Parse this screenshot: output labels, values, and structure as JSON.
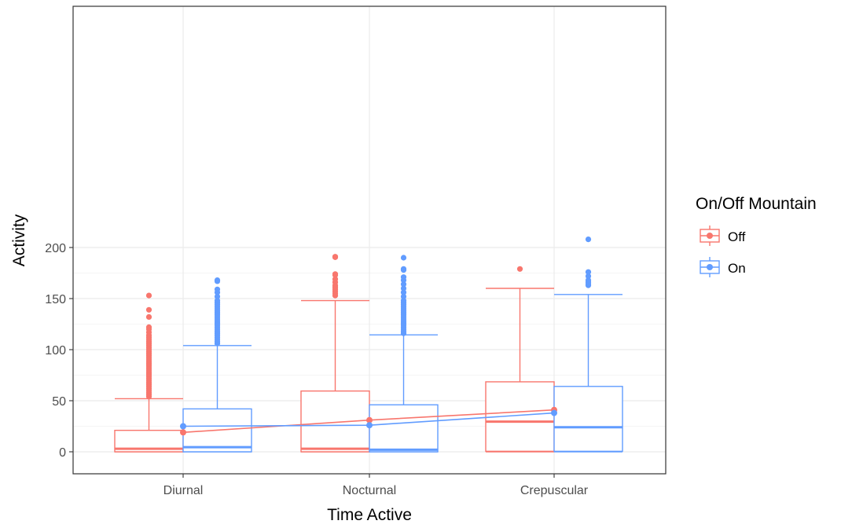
{
  "chart_data": {
    "type": "box",
    "title": "",
    "xlabel": "Time Active",
    "ylabel": "Activity",
    "categories": [
      "Diurnal",
      "Nocturnal",
      "Crepuscular"
    ],
    "ylim": [
      -10,
      218
    ],
    "yticks": [
      0,
      50,
      100,
      150,
      200
    ],
    "grid": true,
    "legend": {
      "title": "On/Off Mountain",
      "position": "right"
    },
    "series": [
      {
        "name": "Off",
        "color": "#f8766d",
        "boxes": [
          {
            "category": "Diurnal",
            "lower_whisker": 0,
            "q1": 0,
            "median": 3,
            "q3": 21,
            "upper_whisker": 52,
            "outliers": [
              54,
              56,
              58,
              60,
              62,
              64,
              66,
              68,
              70,
              72,
              74,
              76,
              78,
              80,
              82,
              84,
              86,
              88,
              90,
              92,
              94,
              96,
              98,
              100,
              102,
              104,
              106,
              108,
              110,
              112,
              114,
              117,
              120,
              122,
              132,
              139,
              153
            ]
          },
          {
            "category": "Nocturnal",
            "lower_whisker": 0,
            "q1": 0,
            "median": 3,
            "q3": 59.5,
            "upper_whisker": 148,
            "outliers": [
              153,
              155,
              157,
              159,
              161,
              163,
              166,
              169,
              173,
              174,
              190.5,
              191
            ]
          },
          {
            "category": "Crepuscular",
            "lower_whisker": 0,
            "q1": 0.5,
            "median": 29.5,
            "q3": 68.5,
            "upper_whisker": 160,
            "outliers": [
              179
            ]
          }
        ],
        "means": [
          19,
          31,
          41
        ]
      },
      {
        "name": "On",
        "color": "#619cff",
        "boxes": [
          {
            "category": "Diurnal",
            "lower_whisker": 0,
            "q1": 0,
            "median": 4.5,
            "q3": 42,
            "upper_whisker": 104,
            "outliers": [
              106,
              108,
              110,
              112,
              114,
              116,
              118,
              120,
              122,
              124,
              126,
              128,
              130,
              132,
              134,
              136,
              138,
              140,
              142,
              144,
              146,
              148,
              152,
              156,
              159,
              167,
              168
            ]
          },
          {
            "category": "Nocturnal",
            "lower_whisker": 0,
            "q1": 0,
            "median": 2,
            "q3": 46,
            "upper_whisker": 114.5,
            "outliers": [
              116,
              118,
              120,
              122,
              124,
              126,
              128,
              130,
              132,
              134,
              136,
              138,
              140,
              142,
              144,
              146,
              148,
              152,
              156,
              160,
              164,
              168,
              171,
              178,
              179,
              190
            ]
          },
          {
            "category": "Crepuscular",
            "lower_whisker": 0,
            "q1": 0.5,
            "median": 24,
            "q3": 64,
            "upper_whisker": 154,
            "outliers": [
              163,
              164,
              166,
              168,
              172,
              176,
              208
            ]
          }
        ],
        "means": [
          25,
          26,
          38
        ]
      }
    ]
  }
}
